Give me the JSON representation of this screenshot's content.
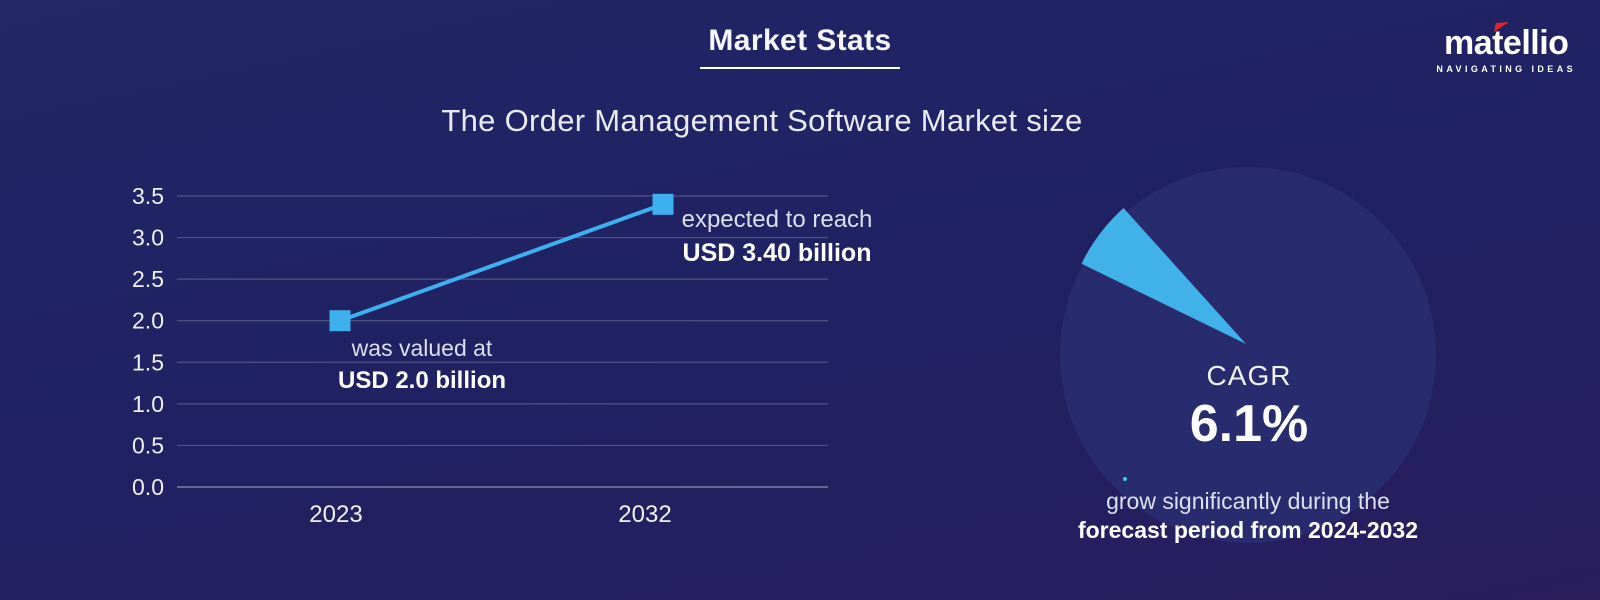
{
  "header": {
    "title": "Market Stats",
    "subtitle": "The Order Management Software Market size"
  },
  "logo": {
    "brand": "matellio",
    "tagline": "NAVIGATING IDEAS"
  },
  "colors": {
    "accent": "#3EB0EE",
    "wedge": "#41B1EA",
    "pie_circle": "#282c6e",
    "background_top": "#222765",
    "background_bottom": "#291d5c",
    "grid": "rgba(255,255,255,0.22)",
    "baseline": "rgba(255,255,255,0.5)",
    "tick_text": "#f0f0f8",
    "logo_flag_red": "#E32330",
    "dot_teal": "#3AD0D8"
  },
  "chart_data": [
    {
      "type": "line",
      "title": "The Order Management Software Market size",
      "x": [
        "2023",
        "2032"
      ],
      "values": [
        2.0,
        3.4
      ],
      "unit": "USD billion",
      "ylim": [
        0,
        3.5
      ],
      "ytick_step": 0.5,
      "yticks": [
        "0.0",
        "0.5",
        "1.0",
        "1.5",
        "2.0",
        "2.5",
        "3.0",
        "3.5"
      ],
      "grid": true,
      "marker": "square",
      "legend": "none",
      "annotations": {
        "start": [
          "was valued at",
          "USD 2.0 billion"
        ],
        "end": [
          "expected to reach",
          "USD 3.40 billion"
        ]
      }
    },
    {
      "type": "pie",
      "label": "CAGR",
      "value": "6.1%",
      "value_percent": 6.1,
      "slice_mid_angle_deg": 143,
      "caption_line1": "grow significantly during the",
      "caption_line2": "forecast period from 2024-2032"
    }
  ]
}
